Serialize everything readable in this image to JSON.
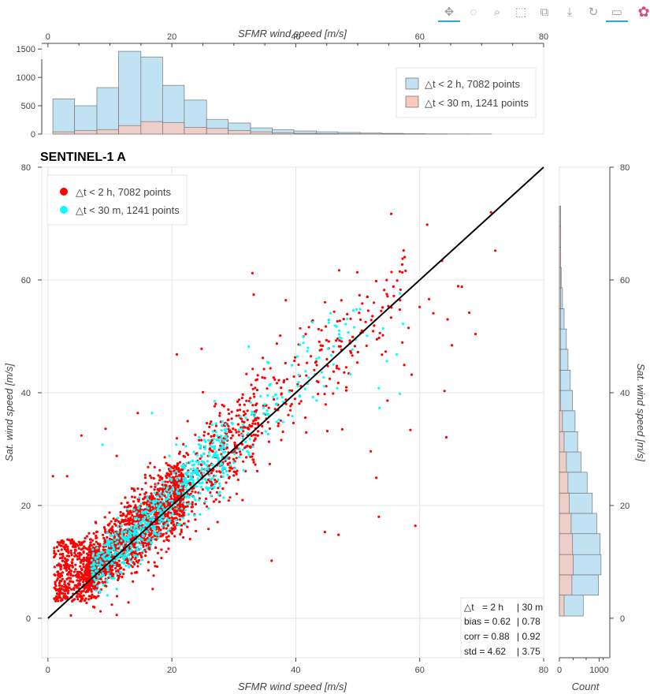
{
  "toolbar": {
    "tools": [
      {
        "name": "pan-icon",
        "glyph": "✥",
        "active": true
      },
      {
        "name": "lasso-select-icon",
        "glyph": "◌",
        "active": false
      },
      {
        "name": "zoom-box-icon",
        "glyph": "⌕",
        "active": false
      },
      {
        "name": "box-select-icon",
        "glyph": "⬚",
        "active": false
      },
      {
        "name": "box-edit-icon",
        "glyph": "⧉",
        "active": false
      },
      {
        "name": "save-icon",
        "glyph": "⤓",
        "active": false
      },
      {
        "name": "reset-icon",
        "glyph": "↻",
        "active": false
      },
      {
        "name": "hover-icon",
        "glyph": "▭",
        "active": true
      },
      {
        "name": "bokeh-logo-icon",
        "glyph": "✿",
        "active": false
      }
    ]
  },
  "colors": {
    "red": "#ff0000",
    "cyan": "#00ffff",
    "hist_blue": "#c0e2f2",
    "hist_red": "#f9c9bd",
    "grid": "#e5e5e5",
    "line": "#000000"
  },
  "chart_data": [
    {
      "type": "scatter",
      "title": "SENTINEL-1 A",
      "xlabel": "SFMR wind speed [m/s]",
      "ylabel": "Sat. wind speed [m/s]",
      "xlim": [
        -1,
        80
      ],
      "ylim": [
        -7,
        80
      ],
      "x_ticks": [
        0,
        20,
        40,
        60,
        80
      ],
      "y_ticks": [
        0,
        20,
        40,
        60,
        80
      ],
      "grid": true,
      "legend_position": "top-left",
      "series": [
        {
          "name": "△t < 2 h, 7082 points",
          "color": "#ff0000"
        },
        {
          "name": "△t < 30 m, 1241 points",
          "color": "#00ffff"
        }
      ],
      "reference_line": {
        "from": [
          0,
          0
        ],
        "to": [
          80,
          80
        ]
      },
      "points_red_outliers": [
        [
          71.5,
          72
        ],
        [
          61.2,
          69.8
        ],
        [
          63.6,
          63.4
        ],
        [
          72.2,
          65.2
        ],
        [
          33,
          61.2
        ],
        [
          47,
          61.7
        ],
        [
          33.2,
          57.4
        ],
        [
          38.4,
          56.4
        ],
        [
          66.2,
          58.9
        ],
        [
          66.8,
          58.8
        ],
        [
          61.5,
          56.6
        ],
        [
          60,
          55.2
        ],
        [
          62.2,
          54.1
        ],
        [
          64.5,
          53
        ],
        [
          69,
          50.4
        ],
        [
          65.2,
          48.4
        ],
        [
          68,
          54.2
        ],
        [
          58.2,
          51.5
        ],
        [
          20.8,
          46.8
        ],
        [
          24.8,
          47.8
        ],
        [
          41.6,
          50.4
        ],
        [
          54.5,
          47.3
        ],
        [
          57.2,
          48.9
        ],
        [
          64,
          40.3
        ],
        [
          57.5,
          44.9
        ],
        [
          58.7,
          43.2
        ],
        [
          47.5,
          33.5
        ],
        [
          45.1,
          33.2
        ],
        [
          58.5,
          33.4
        ],
        [
          64.3,
          32.1
        ],
        [
          52.1,
          29.6
        ],
        [
          53,
          24.9
        ],
        [
          54.8,
          38.6
        ],
        [
          5.4,
          32.4
        ],
        [
          9.3,
          33.6
        ],
        [
          53.4,
          18
        ],
        [
          59.3,
          16.4
        ],
        [
          44.7,
          15.3
        ],
        [
          46.9,
          14.8
        ],
        [
          36.1,
          10.2
        ],
        [
          0.8,
          25.2
        ],
        [
          3.1,
          25.2
        ],
        [
          14.5,
          36.4
        ],
        [
          9.8,
          7.2
        ],
        [
          11.1,
          0.6
        ],
        [
          13,
          2.8
        ],
        [
          3.7,
          0.5
        ],
        [
          16.5,
          27.5
        ],
        [
          11.1,
          28.8
        ],
        [
          25,
          40.1
        ],
        [
          26.9,
          37.6
        ],
        [
          30.6,
          38.4
        ],
        [
          35,
          42.6
        ],
        [
          38.6,
          42.4
        ]
      ],
      "points_cyan_outliers": [
        [
          56.8,
          57.6
        ],
        [
          57.3,
          52.2
        ],
        [
          51.5,
          50.1
        ],
        [
          54.1,
          51.4
        ],
        [
          56.3,
          46.8
        ],
        [
          48.8,
          43.3
        ],
        [
          46.7,
          40.8
        ],
        [
          54.7,
          45.6
        ],
        [
          56.8,
          39.8
        ],
        [
          53.5,
          37.3
        ],
        [
          53.4,
          40.8
        ],
        [
          45.2,
          47.8
        ],
        [
          44.2,
          43.6
        ],
        [
          32.4,
          48.2
        ],
        [
          26.9,
          38.5
        ],
        [
          35.6,
          45.3
        ],
        [
          40.7,
          48.5
        ],
        [
          42.7,
          52.5
        ],
        [
          45.6,
          54.1
        ],
        [
          48.3,
          53.1
        ],
        [
          50.4,
          54.8
        ],
        [
          16.8,
          36.4
        ],
        [
          20.7,
          30.8
        ],
        [
          19.6,
          28.8
        ],
        [
          24.4,
          32.1
        ],
        [
          30.2,
          26.6
        ],
        [
          31.6,
          26.2
        ],
        [
          29.8,
          34.5
        ],
        [
          8.8,
          30.8
        ],
        [
          11.1,
          5.2
        ]
      ]
    },
    {
      "type": "bar",
      "title": "",
      "xlabel": "SFMR wind speed [m/s]",
      "ylabel": "",
      "xlim": [
        -1,
        80
      ],
      "ylim": [
        0,
        1600
      ],
      "x_ticks": [
        0,
        20,
        40,
        60,
        80
      ],
      "y_ticks": [
        0,
        500,
        1000,
        1500
      ],
      "legend_position": "top-right",
      "bin_edges": [
        0.8,
        4.3,
        7.9,
        11.4,
        15,
        18.5,
        22,
        25.6,
        29.1,
        32.7,
        36.2,
        39.7,
        43.3,
        46.8,
        50.4,
        53.9,
        57.4,
        61,
        64.5,
        68,
        71.6
      ],
      "series": [
        {
          "name": "△t < 2 h, 7082 points",
          "color": "#c0e2f2",
          "values": [
            620,
            500,
            820,
            1460,
            1360,
            860,
            600,
            255,
            195,
            110,
            75,
            55,
            40,
            28,
            18,
            12,
            7,
            4,
            3,
            2
          ]
        },
        {
          "name": "△t < 30 m, 1241 points",
          "color": "#f9c9bd",
          "values": [
            40,
            60,
            80,
            150,
            220,
            200,
            120,
            100,
            60,
            40,
            20,
            12,
            8,
            5,
            3,
            2,
            1,
            1,
            0,
            0
          ]
        }
      ]
    },
    {
      "type": "bar",
      "title": "",
      "xlabel": "Count",
      "ylabel": "Sat. wind speed [m/s]",
      "orientation": "horizontal",
      "xscale": "log",
      "x_ticks": [
        0,
        1000
      ],
      "x_tick_labels": [
        "0",
        "1000"
      ],
      "y_ticks": [
        0,
        20,
        40,
        60,
        80
      ],
      "ylim": [
        -7,
        80
      ],
      "bin_edges": [
        0.4,
        4.1,
        7.7,
        11.3,
        15,
        18.6,
        22.2,
        25.9,
        29.5,
        33.1,
        36.8,
        40.4,
        44,
        47.7,
        51.3,
        54.9,
        58.6,
        62.2,
        65.8,
        69.5,
        73.1
      ],
      "series": [
        {
          "name": "△t < 2 h, 7082 points",
          "color": "#c0e2f2",
          "values": [
            60,
            900,
            1400,
            1200,
            650,
            300,
            120,
            40,
            22,
            14,
            9,
            6,
            4,
            3,
            2,
            1.5,
            1.2,
            1,
            0.6,
            0.5
          ]
        },
        {
          "name": "△t < 30 m, 1241 points",
          "color": "#f9c9bd",
          "values": [
            2,
            8,
            10,
            9,
            7,
            5,
            4,
            3,
            2,
            1.5,
            1,
            0.8,
            0.6,
            0.5,
            0.4,
            0.3,
            0.2,
            0.2,
            0.1,
            0.1
          ]
        }
      ]
    }
  ],
  "stats_box": {
    "row1": [
      "△t",
      "= 2 h",
      "| 30 m"
    ],
    "row2": [
      "bias = 0.62",
      "| 0.78"
    ],
    "row3": [
      "corr = 0.88",
      "| 0.92"
    ],
    "row4": [
      "std  = 4.62",
      "| 3.75"
    ]
  }
}
